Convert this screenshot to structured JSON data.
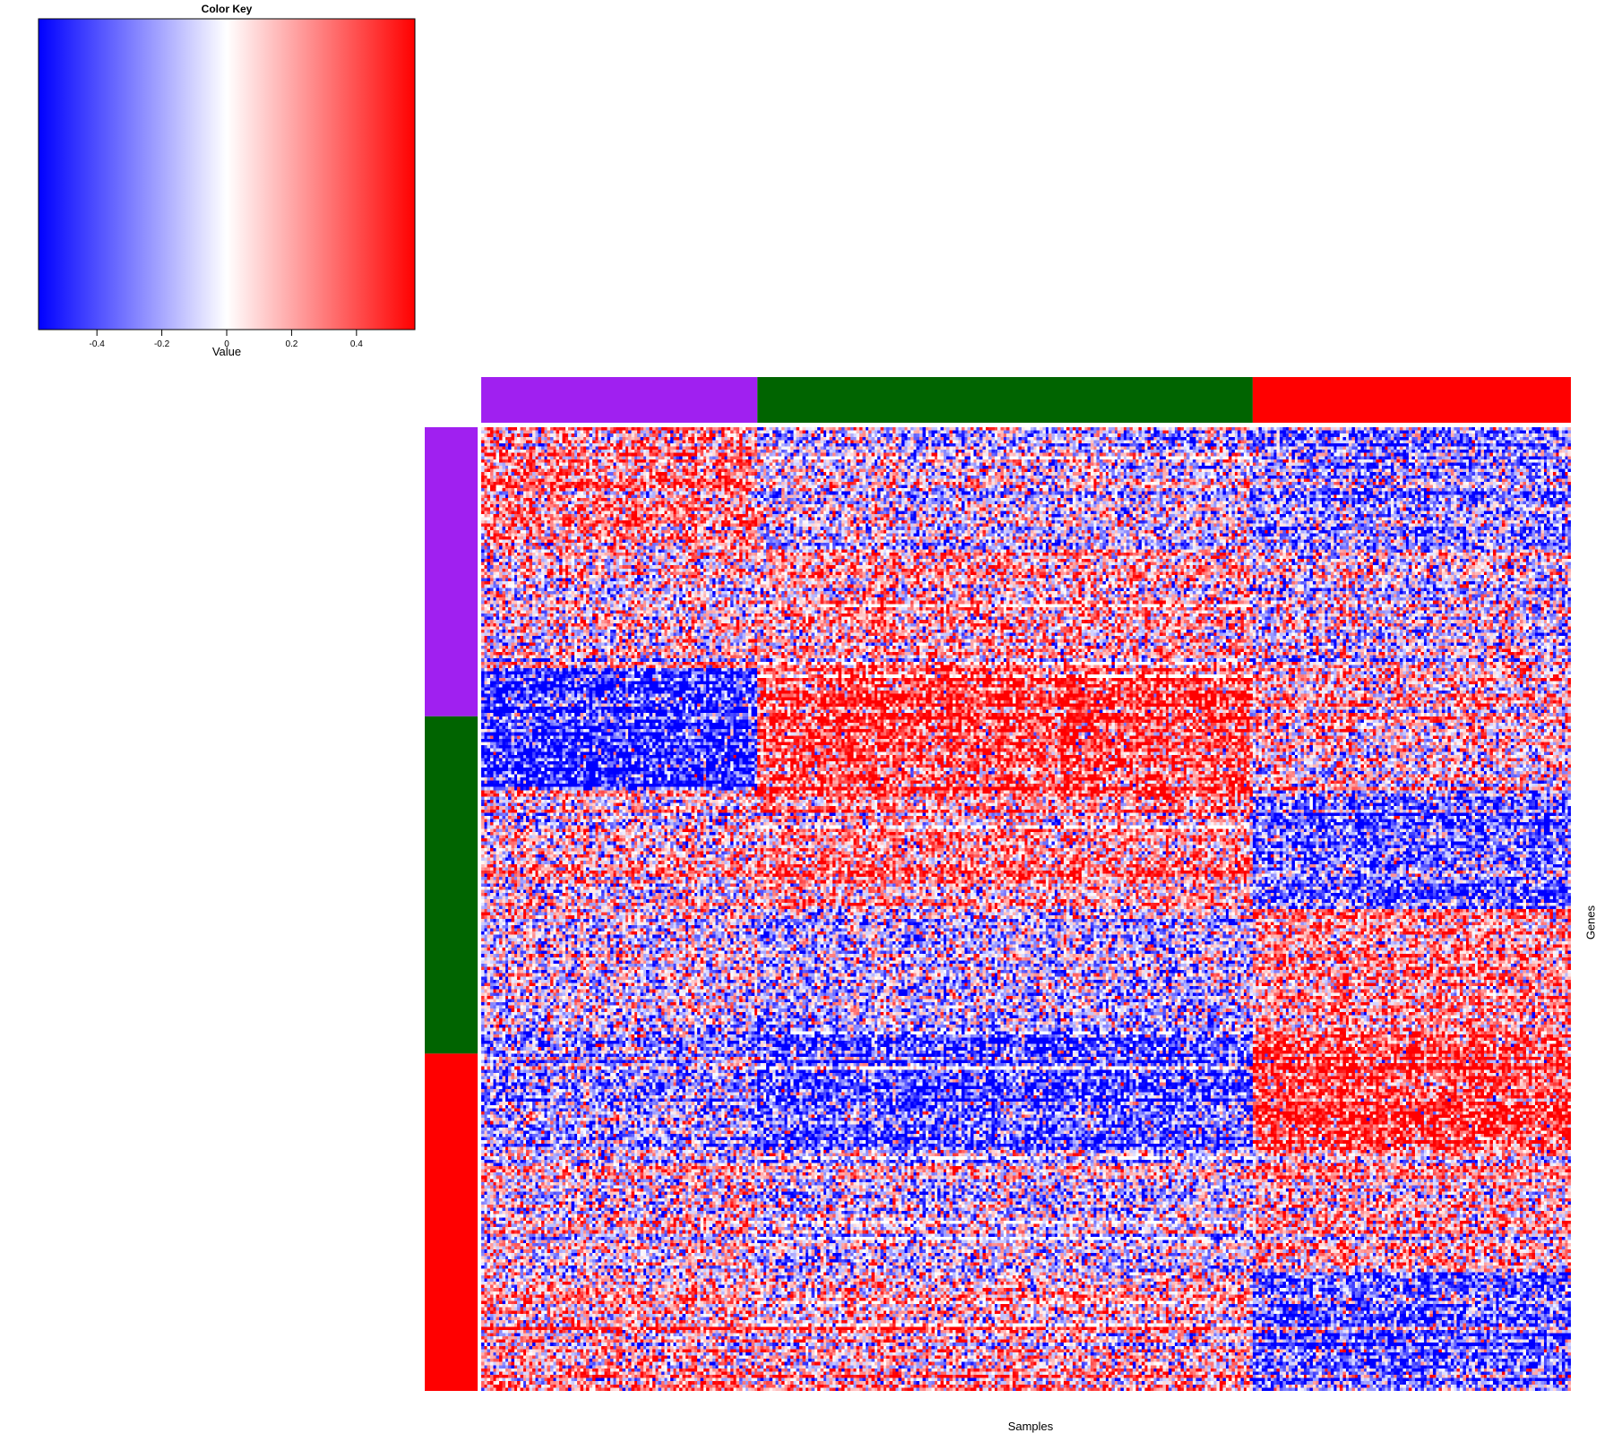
{
  "chart_data": {
    "type": "heatmap",
    "title": "",
    "xlabel": "Samples",
    "ylabel": "Genes",
    "color_key": {
      "title": "Color Key",
      "xlabel": "Value",
      "range": [
        -0.58,
        0.58
      ],
      "ticks": [
        -0.4,
        -0.2,
        0,
        0.2,
        0.4
      ],
      "tick_labels": [
        "-0.4",
        "-0.2",
        "0",
        "0.2",
        "0.4"
      ],
      "colors": [
        "#0000ff",
        "#ffffff",
        "#ff0000"
      ]
    },
    "column_groups": [
      {
        "color": "#a020f0",
        "n_samples": 92
      },
      {
        "color": "#006400",
        "n_samples": 165
      },
      {
        "color": "#ff0000",
        "n_samples": 106
      }
    ],
    "row_groups": [
      {
        "color": "#a020f0",
        "n_genes": 90
      },
      {
        "color": "#006400",
        "n_genes": 105
      },
      {
        "color": "#ff0000",
        "n_genes": 105
      }
    ],
    "cluster_mean_values": [
      [
        0.25,
        -0.05,
        -0.22
      ],
      [
        0.04,
        0.15,
        -0.05
      ],
      [
        -0.5,
        0.42,
        0.08
      ],
      [
        0.06,
        0.2,
        -0.35
      ],
      [
        -0.02,
        -0.12,
        0.22
      ],
      [
        -0.2,
        -0.38,
        0.45
      ],
      [
        0.02,
        -0.08,
        0.12
      ],
      [
        0.18,
        0.15,
        -0.32
      ]
    ]
  }
}
